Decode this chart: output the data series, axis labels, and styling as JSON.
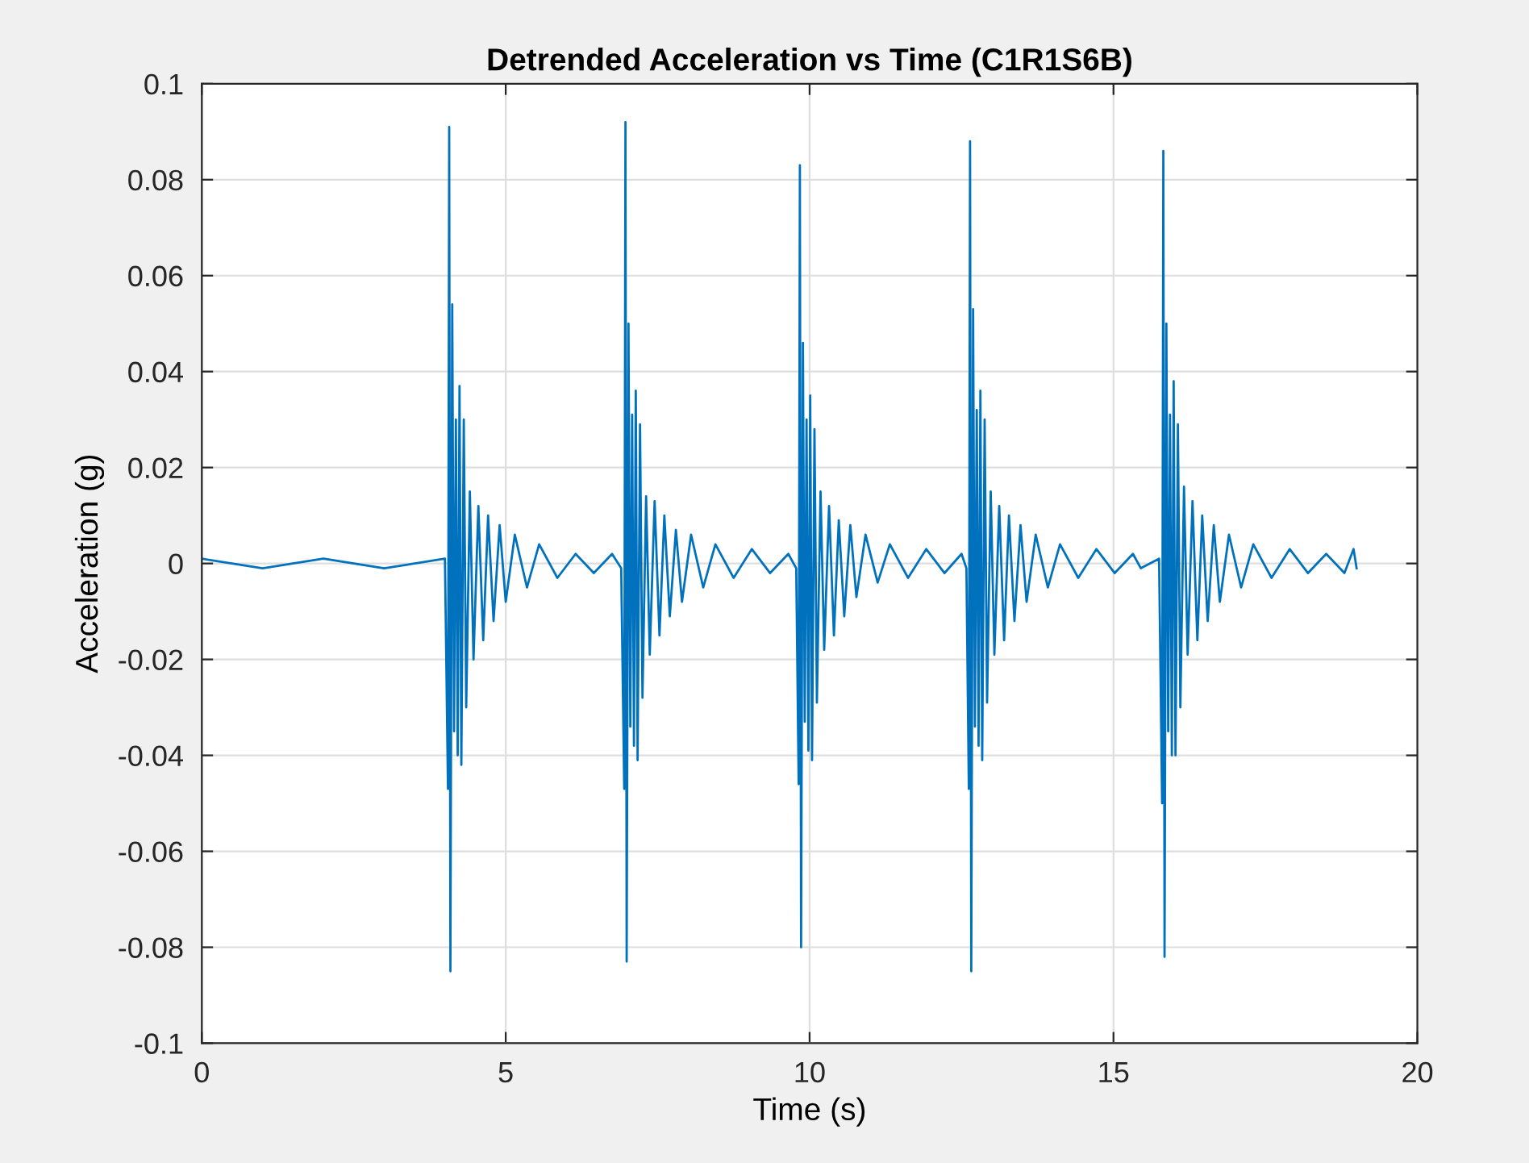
{
  "chart_data": {
    "type": "line",
    "title": "Detrended Acceleration vs Time (C1R1S6B)",
    "xlabel": "Time (s)",
    "ylabel": "Acceleration (g)",
    "x": [
      0,
      1,
      2,
      3,
      4.0,
      4.05,
      4.07,
      4.09,
      4.12,
      4.15,
      4.18,
      4.21,
      4.24,
      4.27,
      4.31,
      4.35,
      4.41,
      4.47,
      4.55,
      4.63,
      4.71,
      4.8,
      4.9,
      5.0,
      5.15,
      5.35,
      5.55,
      5.85,
      6.15,
      6.45,
      6.75,
      6.9,
      6.95,
      6.97,
      6.99,
      7.02,
      7.05,
      7.08,
      7.11,
      7.14,
      7.17,
      7.21,
      7.25,
      7.31,
      7.37,
      7.45,
      7.53,
      7.61,
      7.7,
      7.8,
      7.9,
      8.05,
      8.25,
      8.45,
      8.75,
      9.05,
      9.35,
      9.65,
      9.78,
      9.82,
      9.84,
      9.86,
      9.89,
      9.92,
      9.95,
      9.98,
      10.01,
      10.04,
      10.08,
      10.12,
      10.18,
      10.24,
      10.32,
      10.4,
      10.48,
      10.57,
      10.67,
      10.77,
      10.92,
      11.12,
      11.32,
      11.62,
      11.92,
      12.22,
      12.5,
      12.58,
      12.62,
      12.64,
      12.66,
      12.69,
      12.72,
      12.75,
      12.78,
      12.81,
      12.84,
      12.88,
      12.92,
      12.98,
      13.04,
      13.12,
      13.2,
      13.28,
      13.37,
      13.47,
      13.57,
      13.72,
      13.92,
      14.12,
      14.42,
      14.72,
      15.02,
      15.32,
      15.45,
      15.75,
      15.8,
      15.82,
      15.84,
      15.87,
      15.9,
      15.93,
      15.96,
      15.99,
      16.02,
      16.06,
      16.1,
      16.16,
      16.22,
      16.3,
      16.38,
      16.46,
      16.55,
      16.65,
      16.75,
      16.9,
      17.1,
      17.3,
      17.6,
      17.9,
      18.2,
      18.5,
      18.8,
      18.95,
      19.0
    ],
    "series": [
      {
        "color": "#0072bd",
        "values": [
          0.001,
          -0.001,
          0.001,
          -0.001,
          0.001,
          -0.047,
          0.091,
          -0.085,
          0.054,
          -0.035,
          0.03,
          -0.04,
          0.037,
          -0.042,
          0.03,
          -0.03,
          0.015,
          -0.02,
          0.012,
          -0.016,
          0.01,
          -0.012,
          0.008,
          -0.008,
          0.006,
          -0.005,
          0.004,
          -0.003,
          0.002,
          -0.002,
          0.002,
          -0.001,
          -0.047,
          0.092,
          -0.083,
          0.05,
          -0.034,
          0.031,
          -0.038,
          0.036,
          -0.041,
          0.029,
          -0.028,
          0.014,
          -0.019,
          0.013,
          -0.015,
          0.01,
          -0.011,
          0.007,
          -0.008,
          0.006,
          -0.005,
          0.004,
          -0.003,
          0.003,
          -0.002,
          0.002,
          -0.001,
          -0.046,
          0.083,
          -0.08,
          0.046,
          -0.033,
          0.03,
          -0.039,
          0.035,
          -0.041,
          0.028,
          -0.029,
          0.015,
          -0.018,
          0.012,
          -0.015,
          0.009,
          -0.011,
          0.008,
          -0.007,
          0.006,
          -0.004,
          0.004,
          -0.003,
          0.003,
          -0.002,
          0.002,
          -0.001,
          -0.047,
          0.088,
          -0.085,
          0.053,
          -0.034,
          0.032,
          -0.038,
          0.036,
          -0.041,
          0.03,
          -0.029,
          0.015,
          -0.019,
          0.012,
          -0.016,
          0.01,
          -0.012,
          0.008,
          -0.008,
          0.006,
          -0.005,
          0.004,
          -0.003,
          0.003,
          -0.002,
          0.002,
          -0.001,
          0.001,
          -0.05,
          0.086,
          -0.082,
          0.05,
          -0.035,
          0.031,
          -0.04,
          0.038,
          -0.04,
          0.029,
          -0.03,
          0.016,
          -0.019,
          0.013,
          -0.016,
          0.01,
          -0.012,
          0.008,
          -0.008,
          0.006,
          -0.005,
          0.004,
          -0.003,
          0.003,
          -0.002,
          0.002,
          -0.002,
          0.003,
          -0.001
        ]
      }
    ],
    "xlim": [
      0,
      20
    ],
    "xticks": [
      0,
      5,
      10,
      15,
      20
    ],
    "ylim": [
      -0.1,
      0.1
    ],
    "yticks": [
      -0.1,
      -0.08,
      -0.06,
      -0.04,
      -0.02,
      0,
      0.02,
      0.04,
      0.06,
      0.08,
      0.1
    ],
    "grid": true
  }
}
